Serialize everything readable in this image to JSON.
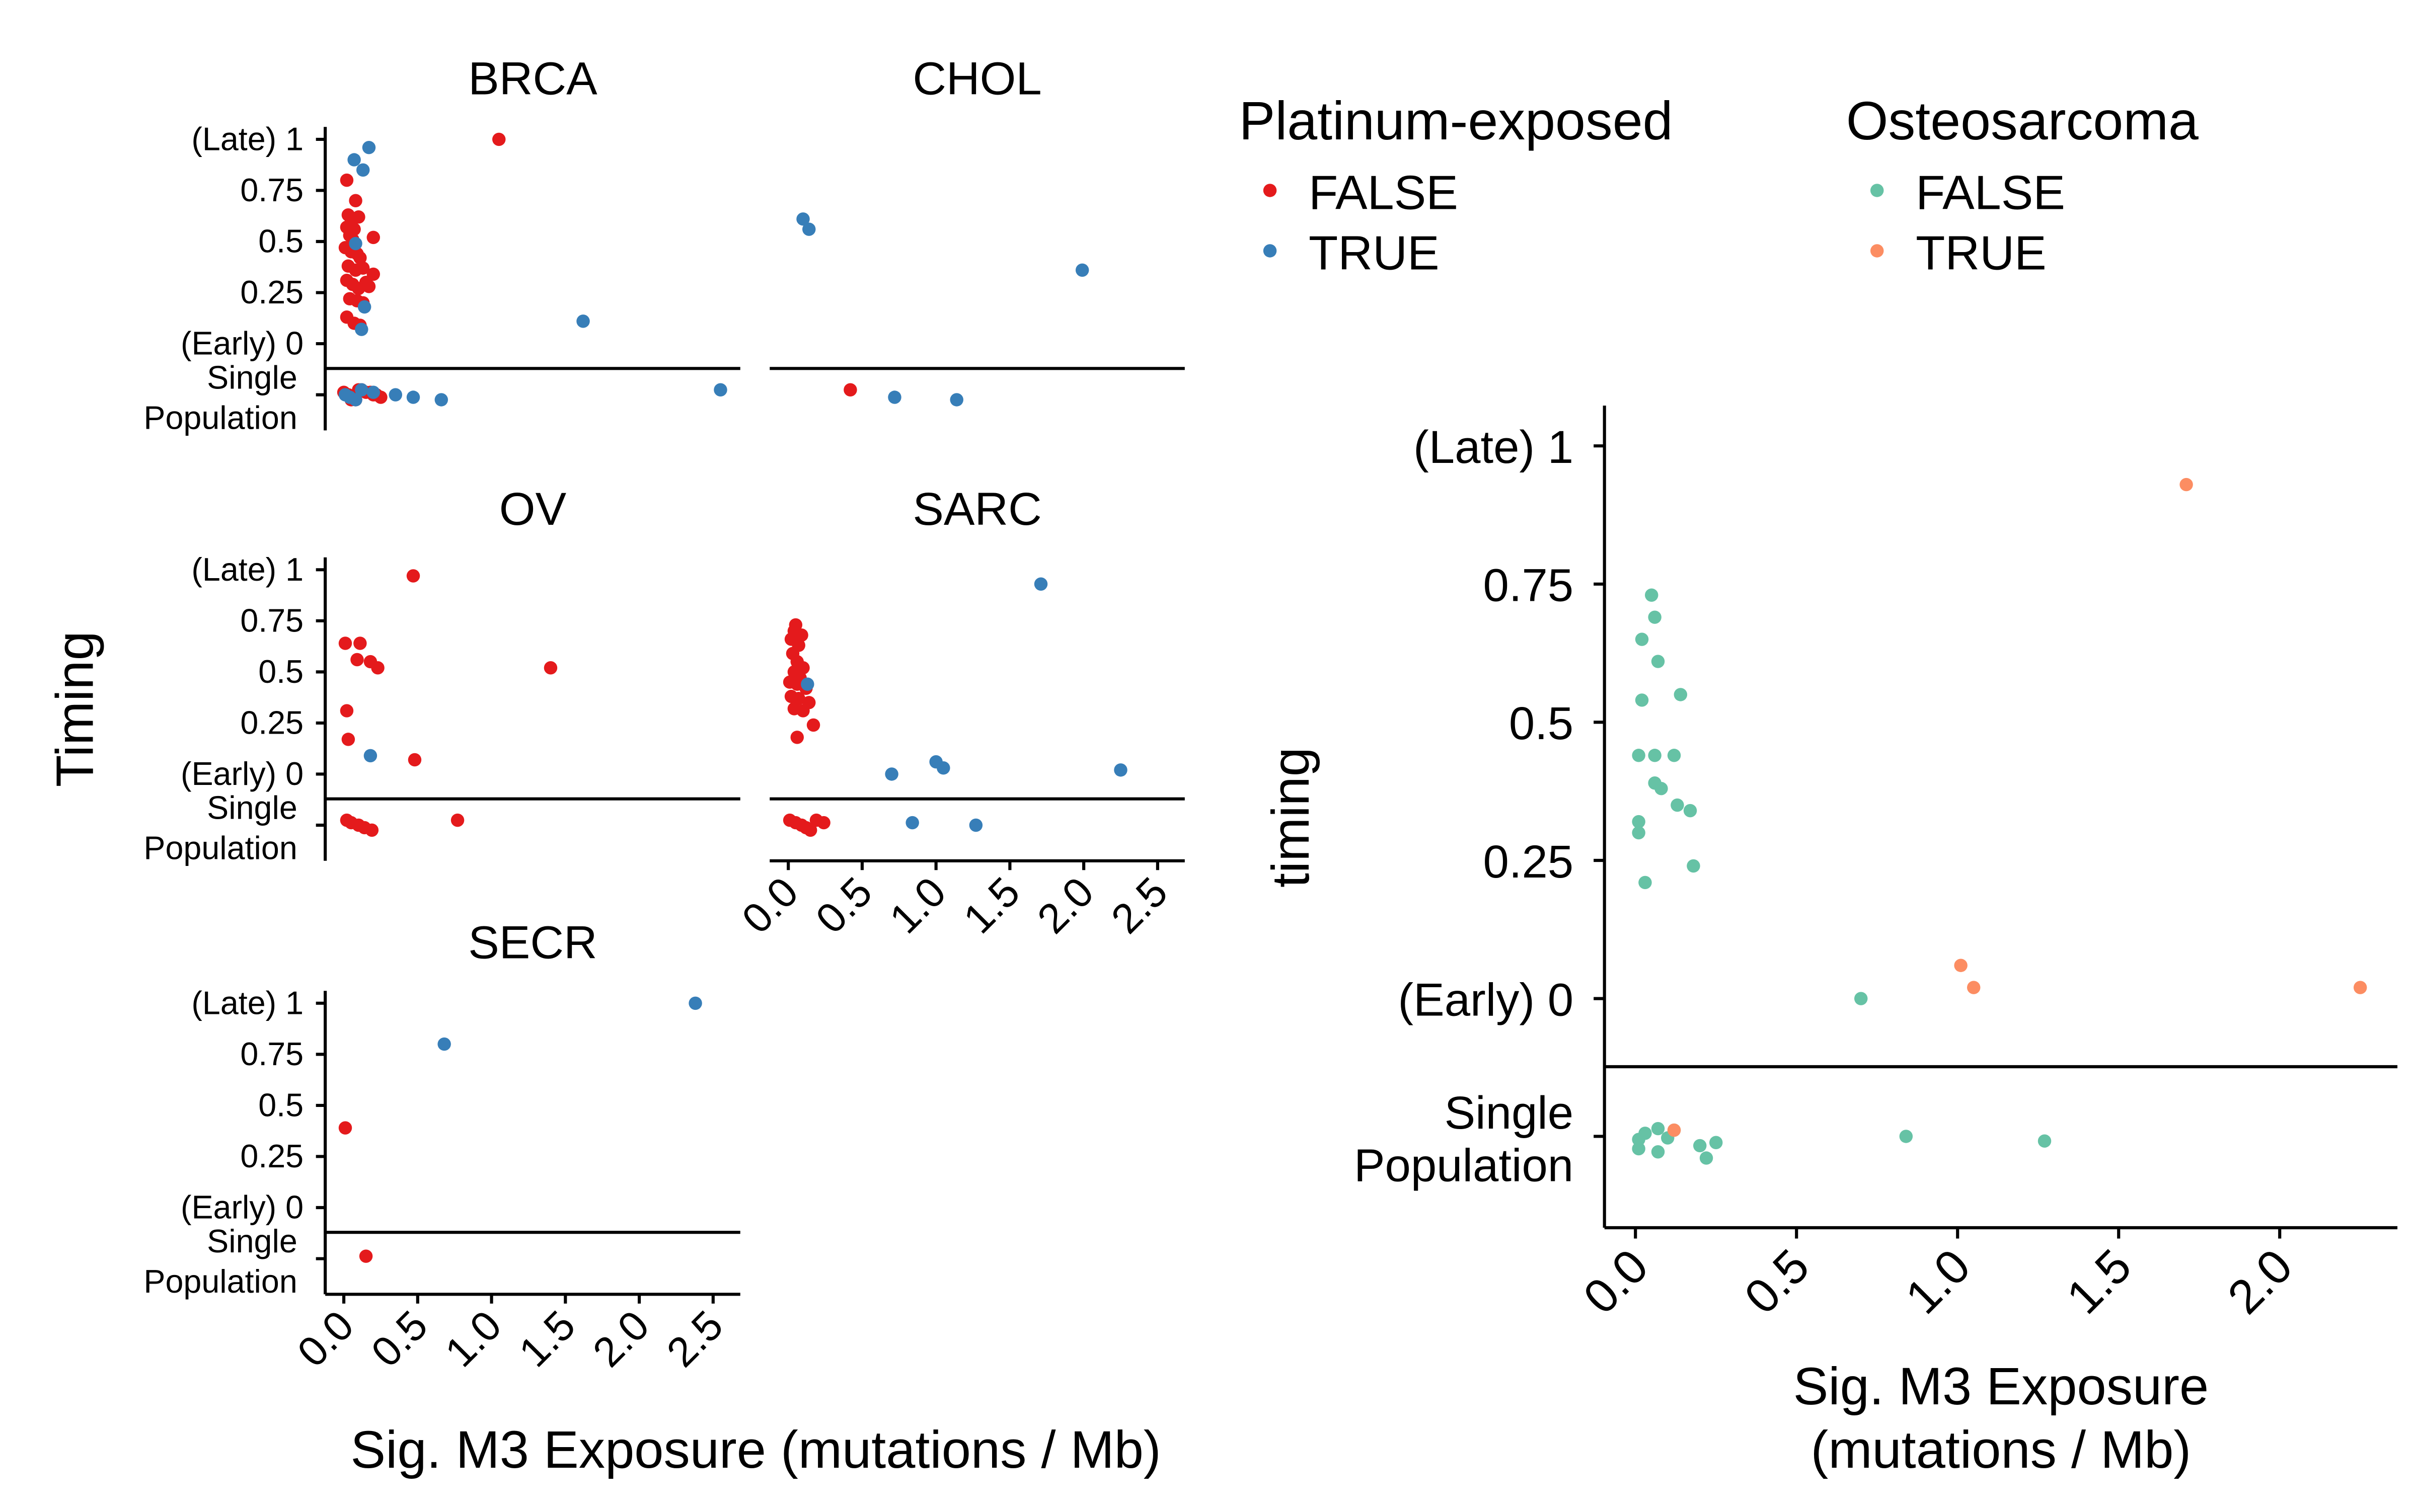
{
  "legends": [
    {
      "title": "Platinum-exposed",
      "entries": [
        {
          "label": "FALSE",
          "color": "#E41A1C"
        },
        {
          "label": "TRUE",
          "color": "#377EB8"
        }
      ]
    },
    {
      "title": "Osteosarcoma",
      "entries": [
        {
          "label": "FALSE",
          "color": "#66C2A5"
        },
        {
          "label": "TRUE",
          "color": "#FC8D62"
        }
      ]
    }
  ],
  "chart_data": [
    {
      "type": "scatter",
      "ylabel": "Timing",
      "xlabel": "Sig. M3 Exposure (mutations / Mb)",
      "xlim": [
        0,
        2.6
      ],
      "x_ticks": [
        "0.0",
        "0.5",
        "1.0",
        "1.5",
        "2.0",
        "2.5"
      ],
      "y_ticks": [
        "(Late) 1",
        "0.75",
        "0.5",
        "0.25",
        "(Early) 0"
      ],
      "single_population_label": [
        "Single",
        "Population"
      ],
      "series_note": "color by Platinum-exposed (FALSE / TRUE); y = 'single' denotes Single Population row",
      "panels": [
        {
          "title": "BRCA",
          "FALSE": [
            [
              0.02,
              0.8
            ],
            [
              0.03,
              0.63
            ],
            [
              0.05,
              0.61
            ],
            [
              0.08,
              0.7
            ],
            [
              0.1,
              0.62
            ],
            [
              0.02,
              0.57
            ],
            [
              0.07,
              0.56
            ],
            [
              0.04,
              0.53
            ],
            [
              0.06,
              0.51
            ],
            [
              0.2,
              0.52
            ],
            [
              0.01,
              0.47
            ],
            [
              0.05,
              0.45
            ],
            [
              0.11,
              0.42
            ],
            [
              0.03,
              0.38
            ],
            [
              0.08,
              0.36
            ],
            [
              0.13,
              0.37
            ],
            [
              0.2,
              0.34
            ],
            [
              0.02,
              0.31
            ],
            [
              0.06,
              0.29
            ],
            [
              0.1,
              0.27
            ],
            [
              0.17,
              0.28
            ],
            [
              0.04,
              0.22
            ],
            [
              0.09,
              0.21
            ],
            [
              0.13,
              0.2
            ],
            [
              0.02,
              0.13
            ],
            [
              0.07,
              0.1
            ],
            [
              0.11,
              0.09
            ],
            [
              1.05,
              1.0
            ],
            [
              0.05,
              0.58
            ],
            [
              0.09,
              0.44
            ],
            [
              0.15,
              0.3
            ],
            [
              0.0,
              "single"
            ],
            [
              0.03,
              "single"
            ],
            [
              0.06,
              "single"
            ],
            [
              0.08,
              "single"
            ],
            [
              0.12,
              "single"
            ],
            [
              0.15,
              "single"
            ],
            [
              0.2,
              "single"
            ],
            [
              0.25,
              "single"
            ],
            [
              0.05,
              "single"
            ],
            [
              0.1,
              "single"
            ],
            [
              0.18,
              "single"
            ],
            [
              0.22,
              "single"
            ]
          ],
          "TRUE": [
            [
              0.17,
              0.96
            ],
            [
              0.07,
              0.9
            ],
            [
              0.13,
              0.85
            ],
            [
              0.08,
              0.49
            ],
            [
              0.14,
              0.18
            ],
            [
              0.12,
              0.07
            ],
            [
              1.62,
              0.11
            ],
            [
              0.01,
              "single"
            ],
            [
              0.04,
              "single"
            ],
            [
              0.08,
              "single"
            ],
            [
              0.12,
              "single"
            ],
            [
              0.2,
              "single"
            ],
            [
              0.35,
              "single"
            ],
            [
              0.47,
              "single"
            ],
            [
              0.66,
              "single"
            ],
            [
              2.55,
              "single"
            ]
          ]
        },
        {
          "title": "CHOL",
          "FALSE": [
            [
              0.42,
              "single"
            ]
          ],
          "TRUE": [
            [
              0.1,
              0.61
            ],
            [
              0.14,
              0.56
            ],
            [
              1.99,
              0.36
            ],
            [
              0.72,
              "single"
            ],
            [
              1.14,
              "single"
            ]
          ]
        },
        {
          "title": "OV",
          "FALSE": [
            [
              0.01,
              0.64
            ],
            [
              0.11,
              0.64
            ],
            [
              0.47,
              0.97
            ],
            [
              0.09,
              0.56
            ],
            [
              0.18,
              0.55
            ],
            [
              0.23,
              0.52
            ],
            [
              1.4,
              0.52
            ],
            [
              0.02,
              0.31
            ],
            [
              0.03,
              0.17
            ],
            [
              0.48,
              0.07
            ],
            [
              0.02,
              "single"
            ],
            [
              0.05,
              "single"
            ],
            [
              0.1,
              "single"
            ],
            [
              0.14,
              "single"
            ],
            [
              0.19,
              "single"
            ],
            [
              0.77,
              "single"
            ]
          ],
          "TRUE": [
            [
              0.18,
              0.09
            ]
          ]
        },
        {
          "title": "SARC",
          "FALSE": [
            [
              0.05,
              0.73
            ],
            [
              0.04,
              0.7
            ],
            [
              0.09,
              0.68
            ],
            [
              0.02,
              0.66
            ],
            [
              0.07,
              0.63
            ],
            [
              0.03,
              0.59
            ],
            [
              0.06,
              0.55
            ],
            [
              0.1,
              0.52
            ],
            [
              0.04,
              0.5
            ],
            [
              0.08,
              0.47
            ],
            [
              0.01,
              0.45
            ],
            [
              0.06,
              0.44
            ],
            [
              0.12,
              0.42
            ],
            [
              0.02,
              0.38
            ],
            [
              0.07,
              0.37
            ],
            [
              0.14,
              0.35
            ],
            [
              0.04,
              0.32
            ],
            [
              0.1,
              0.31
            ],
            [
              0.17,
              0.24
            ],
            [
              0.06,
              0.18
            ],
            [
              0.01,
              "single"
            ],
            [
              0.05,
              "single"
            ],
            [
              0.09,
              "single"
            ],
            [
              0.12,
              "single"
            ],
            [
              0.15,
              "single"
            ],
            [
              0.19,
              "single"
            ],
            [
              0.24,
              "single"
            ]
          ],
          "TRUE": [
            [
              0.13,
              0.44
            ],
            [
              1.71,
              0.93
            ],
            [
              0.7,
              0.0
            ],
            [
              1.0,
              0.06
            ],
            [
              1.05,
              0.03
            ],
            [
              2.25,
              0.02
            ],
            [
              0.84,
              "single"
            ],
            [
              1.27,
              "single"
            ]
          ]
        },
        {
          "title": "SECR",
          "FALSE": [
            [
              0.01,
              0.39
            ],
            [
              0.15,
              "single"
            ]
          ],
          "TRUE": [
            [
              2.38,
              1.0
            ],
            [
              0.68,
              0.8
            ]
          ]
        }
      ]
    },
    {
      "type": "scatter",
      "title": "",
      "ylabel": "timing",
      "xlabel": "Sig. M3 Exposure (mutations / Mb)",
      "xlim": [
        -0.05,
        2.3
      ],
      "x_ticks": [
        "0.0",
        "0.5",
        "1.0",
        "1.5",
        "2.0"
      ],
      "y_ticks": [
        "(Late) 1",
        "0.75",
        "0.5",
        "0.25",
        "(Early) 0"
      ],
      "single_population_label": [
        "Single",
        "Population"
      ],
      "series_note": "color by Osteosarcoma (FALSE / TRUE)",
      "FALSE": [
        [
          0.05,
          0.73
        ],
        [
          0.06,
          0.69
        ],
        [
          0.02,
          0.65
        ],
        [
          0.07,
          0.61
        ],
        [
          0.14,
          0.55
        ],
        [
          0.02,
          0.54
        ],
        [
          0.01,
          0.44
        ],
        [
          0.06,
          0.44
        ],
        [
          0.12,
          0.44
        ],
        [
          0.06,
          0.39
        ],
        [
          0.08,
          0.38
        ],
        [
          0.13,
          0.35
        ],
        [
          0.17,
          0.34
        ],
        [
          0.01,
          0.32
        ],
        [
          0.01,
          0.3
        ],
        [
          0.18,
          0.24
        ],
        [
          0.03,
          0.21
        ],
        [
          0.7,
          0.0
        ],
        [
          0.01,
          "single"
        ],
        [
          0.12,
          "single"
        ],
        [
          0.2,
          "single"
        ],
        [
          0.25,
          "single"
        ],
        [
          0.01,
          "single"
        ],
        [
          0.03,
          "single"
        ],
        [
          0.07,
          "single"
        ],
        [
          0.1,
          "single"
        ],
        [
          0.22,
          "single"
        ],
        [
          0.07,
          "single"
        ],
        [
          0.84,
          "single"
        ],
        [
          1.27,
          "single"
        ]
      ],
      "TRUE": [
        [
          1.71,
          0.93
        ],
        [
          1.01,
          0.06
        ],
        [
          1.05,
          0.02
        ],
        [
          2.25,
          0.02
        ],
        [
          0.12,
          "single"
        ]
      ]
    }
  ]
}
